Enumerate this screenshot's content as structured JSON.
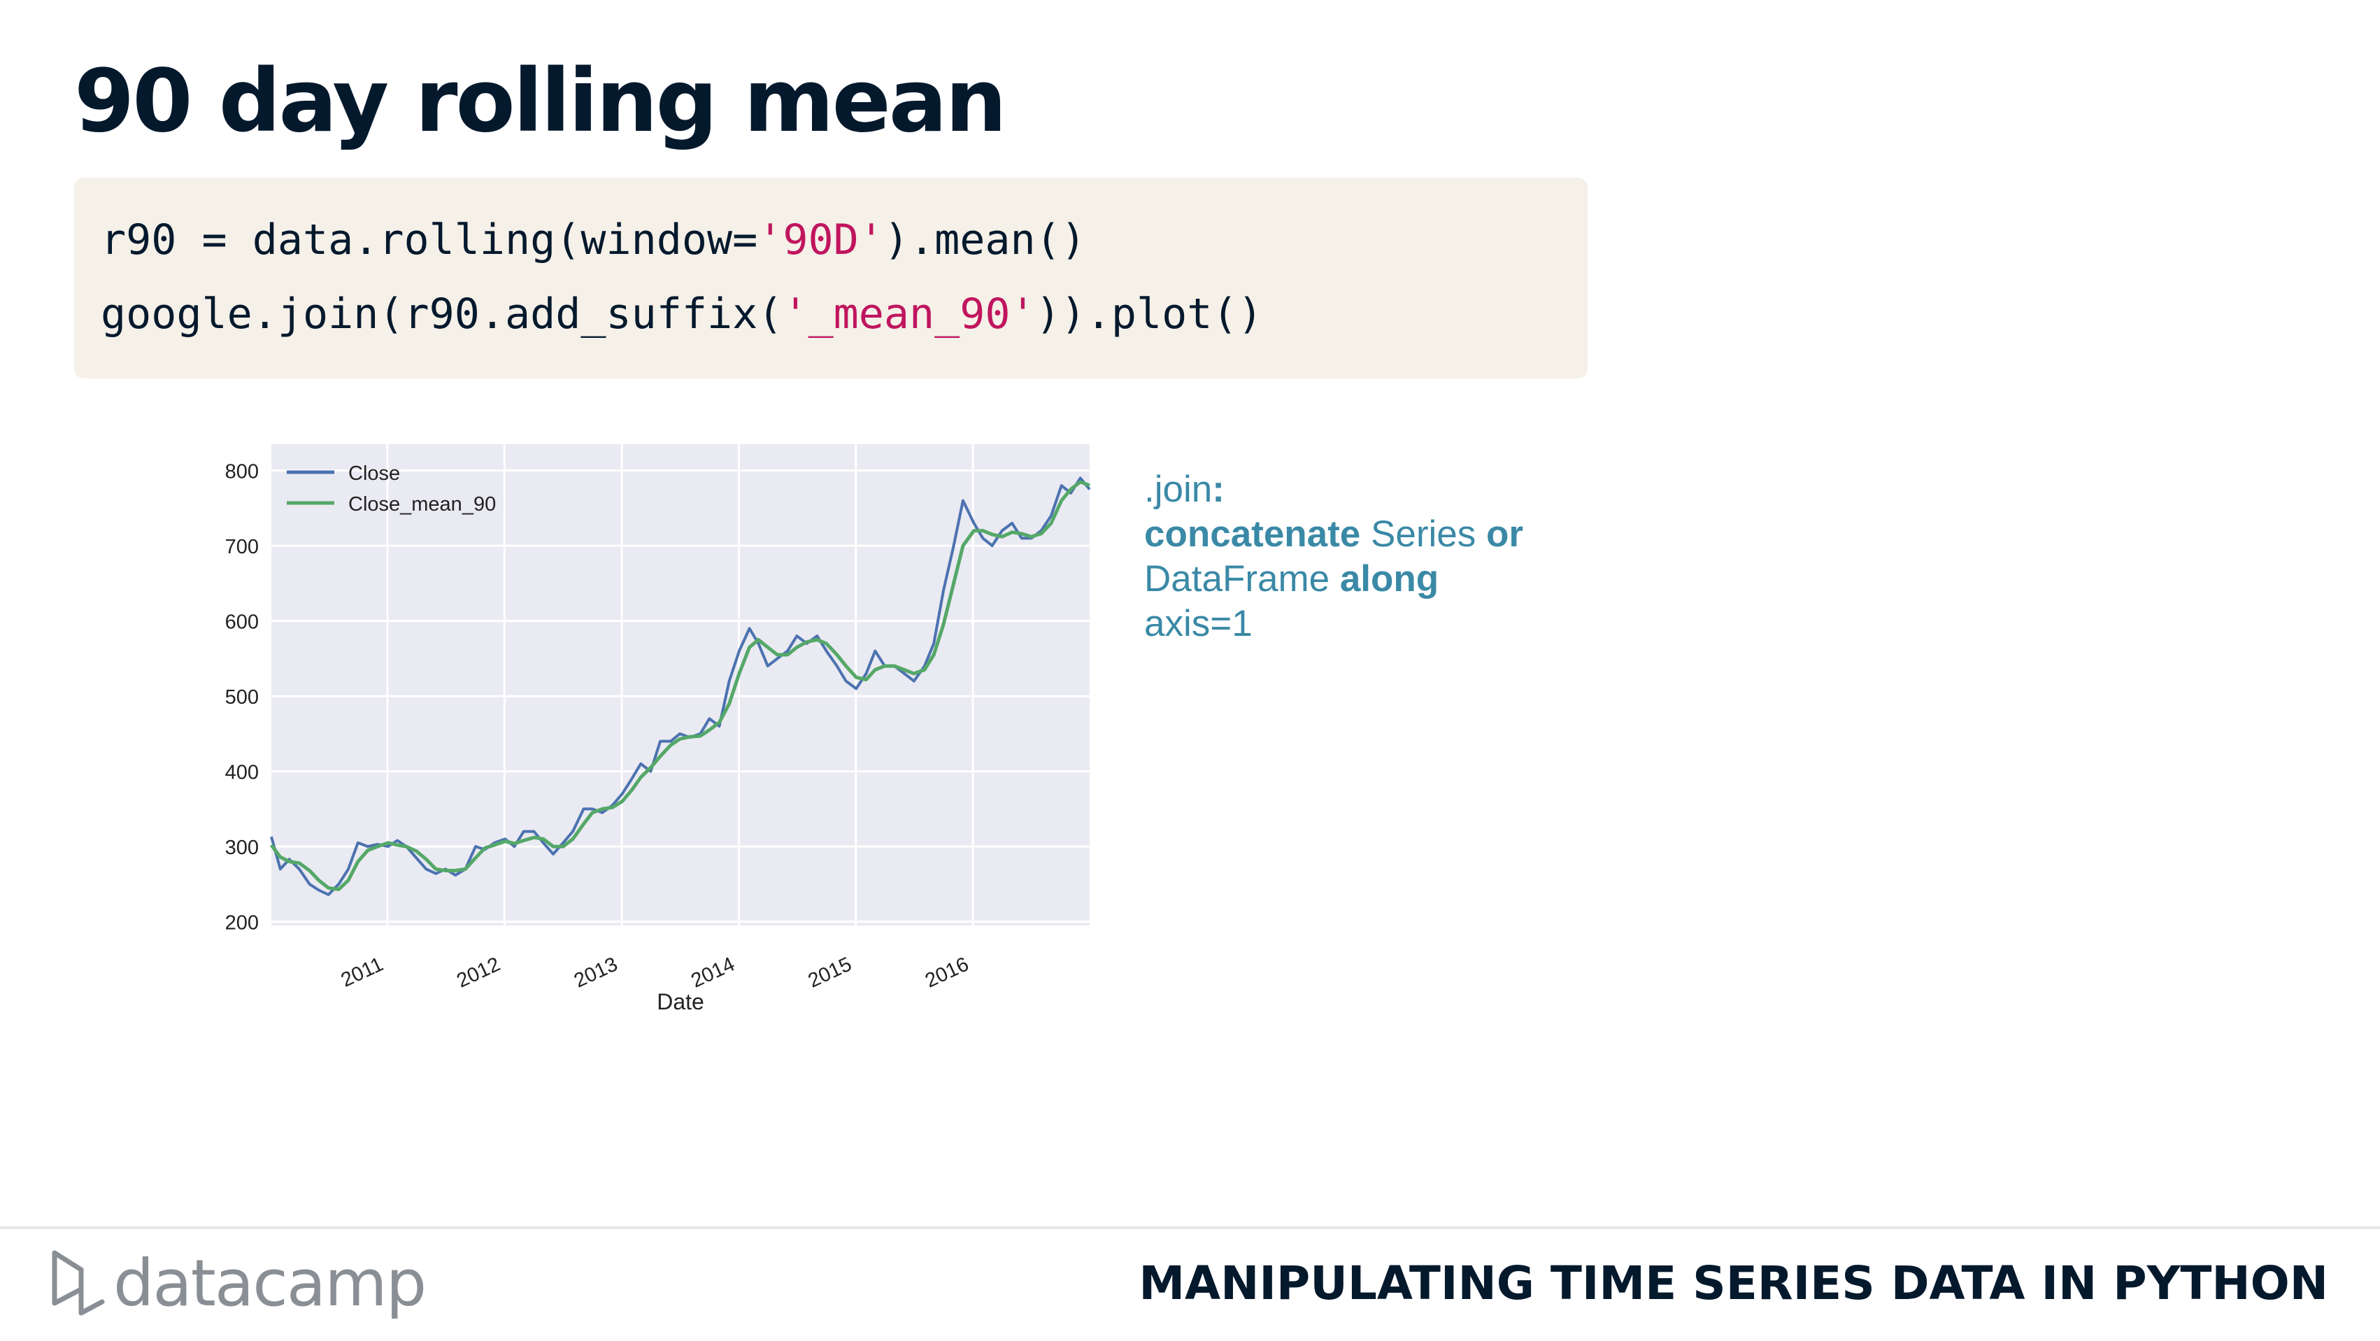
{
  "title": "90 day rolling mean",
  "code": {
    "line1": {
      "pre": "r90 = data.rolling(window=",
      "str": "'90D'",
      "post": ").mean()"
    },
    "line2": {
      "pre": "google.join(r90.add_suffix(",
      "str": "'_mean_90'",
      "post": ")).plot()"
    }
  },
  "note": {
    "part1": ".join",
    "part2": ":",
    "part3": "concatenate",
    "part4": " Series ",
    "part5": "or",
    "part6": "DataFrame ",
    "part7": "along",
    "part8": "axis=1"
  },
  "footer": {
    "brand": "datacamp",
    "course": "MANIPULATING TIME SERIES DATA IN PYTHON"
  },
  "colors": {
    "close": "#4c72b0",
    "mean": "#55a868",
    "plot_bg": "#eaeaf2",
    "note": "#3a89a6",
    "title": "#05192d",
    "code_string": "#c0155e"
  },
  "chart_data": {
    "type": "line",
    "xlabel": "Date",
    "ylabel": "",
    "x_start": "2010-01-04",
    "x_end": "2016-12-30",
    "x_ticks": [
      {
        "date": "2011-01-01",
        "label": "2011"
      },
      {
        "date": "2012-01-01",
        "label": "2012"
      },
      {
        "date": "2013-01-01",
        "label": "2013"
      },
      {
        "date": "2014-01-01",
        "label": "2014"
      },
      {
        "date": "2015-01-01",
        "label": "2015"
      },
      {
        "date": "2016-01-01",
        "label": "2016"
      }
    ],
    "ylim": [
      195,
      835
    ],
    "y_ticks": [
      200,
      300,
      400,
      500,
      600,
      700,
      800
    ],
    "grid": true,
    "legend_position": "top-left",
    "series": [
      {
        "name": "Close",
        "x": [
          "2010-01-04",
          "2010-02-01",
          "2010-03-01",
          "2010-04-01",
          "2010-05-03",
          "2010-06-01",
          "2010-07-01",
          "2010-08-02",
          "2010-09-01",
          "2010-10-01",
          "2010-11-01",
          "2010-12-01",
          "2011-01-03",
          "2011-02-01",
          "2011-03-01",
          "2011-04-01",
          "2011-05-02",
          "2011-06-01",
          "2011-07-01",
          "2011-08-01",
          "2011-09-01",
          "2011-10-03",
          "2011-11-01",
          "2011-12-01",
          "2012-01-03",
          "2012-02-01",
          "2012-03-01",
          "2012-04-02",
          "2012-05-01",
          "2012-06-01",
          "2012-07-02",
          "2012-08-01",
          "2012-09-04",
          "2012-10-01",
          "2012-11-01",
          "2012-12-03",
          "2013-01-02",
          "2013-02-01",
          "2013-03-01",
          "2013-04-01",
          "2013-05-01",
          "2013-06-03",
          "2013-07-01",
          "2013-08-01",
          "2013-09-03",
          "2013-10-01",
          "2013-11-01",
          "2013-12-02",
          "2014-01-02",
          "2014-02-03",
          "2014-03-03",
          "2014-04-01",
          "2014-05-01",
          "2014-06-02",
          "2014-07-01",
          "2014-08-01",
          "2014-09-02",
          "2014-10-01",
          "2014-11-03",
          "2014-12-01",
          "2015-01-02",
          "2015-02-02",
          "2015-03-02",
          "2015-04-01",
          "2015-05-01",
          "2015-06-01",
          "2015-07-01",
          "2015-08-03",
          "2015-09-01",
          "2015-10-01",
          "2015-11-02",
          "2015-12-01",
          "2016-01-04",
          "2016-02-01",
          "2016-03-01",
          "2016-04-01",
          "2016-05-02",
          "2016-06-01",
          "2016-07-01",
          "2016-08-01",
          "2016-09-01",
          "2016-10-03",
          "2016-11-01",
          "2016-12-01",
          "2016-12-30"
        ],
        "y": [
          313,
          270,
          283,
          270,
          250,
          242,
          236,
          250,
          270,
          305,
          300,
          303,
          300,
          308,
          300,
          285,
          270,
          264,
          270,
          262,
          270,
          300,
          296,
          305,
          310,
          300,
          320,
          320,
          305,
          290,
          305,
          320,
          350,
          350,
          345,
          355,
          370,
          390,
          410,
          400,
          440,
          440,
          450,
          445,
          450,
          470,
          460,
          520,
          560,
          590,
          570,
          540,
          550,
          560,
          580,
          570,
          580,
          560,
          540,
          520,
          510,
          530,
          560,
          540,
          540,
          530,
          520,
          540,
          570,
          640,
          700,
          760,
          730,
          710,
          700,
          720,
          730,
          710,
          710,
          720,
          740,
          780,
          770,
          790,
          775
        ]
      },
      {
        "name": "Close_mean_90",
        "x": [
          "2010-01-04",
          "2010-02-01",
          "2010-03-01",
          "2010-04-01",
          "2010-05-03",
          "2010-06-01",
          "2010-07-01",
          "2010-08-02",
          "2010-09-01",
          "2010-10-01",
          "2010-11-01",
          "2010-12-01",
          "2011-01-03",
          "2011-02-01",
          "2011-03-01",
          "2011-04-01",
          "2011-05-02",
          "2011-06-01",
          "2011-07-01",
          "2011-08-01",
          "2011-09-01",
          "2011-10-03",
          "2011-11-01",
          "2011-12-01",
          "2012-01-03",
          "2012-02-01",
          "2012-03-01",
          "2012-04-02",
          "2012-05-01",
          "2012-06-01",
          "2012-07-02",
          "2012-08-01",
          "2012-09-04",
          "2012-10-01",
          "2012-11-01",
          "2012-12-03",
          "2013-01-02",
          "2013-02-01",
          "2013-03-01",
          "2013-04-01",
          "2013-05-01",
          "2013-06-03",
          "2013-07-01",
          "2013-08-01",
          "2013-09-03",
          "2013-10-01",
          "2013-11-01",
          "2013-12-02",
          "2014-01-02",
          "2014-02-03",
          "2014-03-03",
          "2014-04-01",
          "2014-05-01",
          "2014-06-02",
          "2014-07-01",
          "2014-08-01",
          "2014-09-02",
          "2014-10-01",
          "2014-11-03",
          "2014-12-01",
          "2015-01-02",
          "2015-02-02",
          "2015-03-02",
          "2015-04-01",
          "2015-05-01",
          "2015-06-01",
          "2015-07-01",
          "2015-08-03",
          "2015-09-01",
          "2015-10-01",
          "2015-11-02",
          "2015-12-01",
          "2016-01-04",
          "2016-02-01",
          "2016-03-01",
          "2016-04-01",
          "2016-05-02",
          "2016-06-01",
          "2016-07-01",
          "2016-08-01",
          "2016-09-01",
          "2016-10-03",
          "2016-11-01",
          "2016-12-01",
          "2016-12-30"
        ],
        "y": [
          302,
          286,
          280,
          278,
          268,
          255,
          245,
          243,
          255,
          280,
          295,
          300,
          305,
          302,
          300,
          294,
          283,
          270,
          268,
          268,
          270,
          285,
          298,
          302,
          307,
          304,
          308,
          312,
          310,
          300,
          300,
          310,
          330,
          345,
          350,
          352,
          360,
          375,
          392,
          405,
          420,
          435,
          443,
          446,
          447,
          455,
          465,
          490,
          530,
          565,
          575,
          565,
          555,
          555,
          565,
          572,
          575,
          570,
          555,
          540,
          525,
          522,
          535,
          540,
          540,
          535,
          530,
          535,
          555,
          595,
          650,
          700,
          720,
          720,
          715,
          712,
          718,
          716,
          712,
          716,
          730,
          760,
          775,
          785,
          780
        ]
      }
    ]
  }
}
